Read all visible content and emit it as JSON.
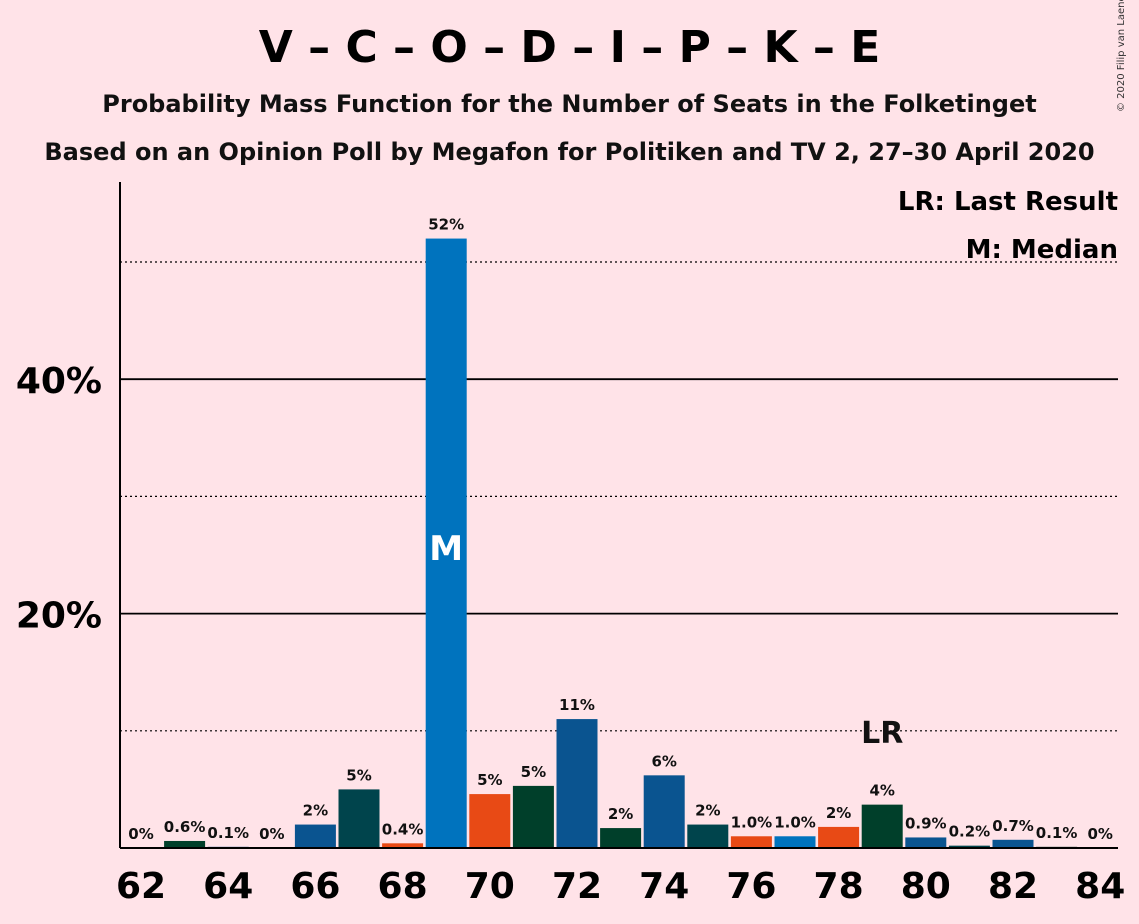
{
  "chart_data": {
    "type": "bar",
    "title": "V – C – O – D – I – P – K – E",
    "subtitle": "Probability Mass Function for the Number of Seats in the Folketinget",
    "subtitle2": "Based on an Opinion Poll by Megafon for Politiken and TV 2, 27–30 April 2020",
    "copyright": "© 2020 Filip van Laenen",
    "legend": [
      "LR: Last Result",
      "M: Median"
    ],
    "legend_position": "top-right",
    "xlabel": "",
    "ylabel": "",
    "ylim": [
      0,
      56
    ],
    "y_ticks": [
      {
        "value": 20,
        "label": "20%"
      },
      {
        "value": 40,
        "label": "40%"
      }
    ],
    "dotted_gridlines": [
      10,
      30,
      50
    ],
    "x_tick_values": [
      62,
      64,
      66,
      68,
      70,
      72,
      74,
      76,
      78,
      80,
      82,
      84
    ],
    "bars": [
      {
        "x": 62,
        "value": 0,
        "label": "0%",
        "color": "#0b4f8f"
      },
      {
        "x": 63,
        "value": 0.6,
        "label": "0.6%",
        "color": "#003f2a"
      },
      {
        "x": 64,
        "value": 0.1,
        "label": "0.1%",
        "color": "#0b4f8f"
      },
      {
        "x": 65,
        "value": 0,
        "label": "0%",
        "color": "#0b4f8f"
      },
      {
        "x": 66,
        "value": 2,
        "label": "2%",
        "color": "#0a5490"
      },
      {
        "x": 67,
        "value": 5,
        "label": "5%",
        "color": "#00444c"
      },
      {
        "x": 68,
        "value": 0.4,
        "label": "0.4%",
        "color": "#e84a15"
      },
      {
        "x": 69,
        "value": 52,
        "label": "52%",
        "color": "#0073be"
      },
      {
        "x": 70,
        "value": 4.6,
        "label": "5%",
        "color": "#e84a15"
      },
      {
        "x": 71,
        "value": 5.3,
        "label": "5%",
        "color": "#003f2a"
      },
      {
        "x": 72,
        "value": 11,
        "label": "11%",
        "color": "#0a5490"
      },
      {
        "x": 73,
        "value": 1.7,
        "label": "2%",
        "color": "#003f2a"
      },
      {
        "x": 74,
        "value": 6.2,
        "label": "6%",
        "color": "#0a5490"
      },
      {
        "x": 75,
        "value": 2,
        "label": "2%",
        "color": "#00444c"
      },
      {
        "x": 76,
        "value": 1.0,
        "label": "1.0%",
        "color": "#e84a15"
      },
      {
        "x": 77,
        "value": 1.0,
        "label": "1.0%",
        "color": "#0073be"
      },
      {
        "x": 78,
        "value": 1.8,
        "label": "2%",
        "color": "#e84a15"
      },
      {
        "x": 79,
        "value": 3.7,
        "label": "4%",
        "color": "#003f2a"
      },
      {
        "x": 80,
        "value": 0.9,
        "label": "0.9%",
        "color": "#0a5490"
      },
      {
        "x": 81,
        "value": 0.2,
        "label": "0.2%",
        "color": "#00444c"
      },
      {
        "x": 82,
        "value": 0.7,
        "label": "0.7%",
        "color": "#0a5490"
      },
      {
        "x": 83,
        "value": 0.1,
        "label": "0.1%",
        "color": "#003f2a"
      },
      {
        "x": 84,
        "value": 0,
        "label": "0%",
        "color": "#0b4f8f"
      }
    ],
    "median": {
      "x": 69,
      "label": "M"
    },
    "last_result": {
      "x": 79,
      "label": "LR",
      "level": 10
    }
  }
}
